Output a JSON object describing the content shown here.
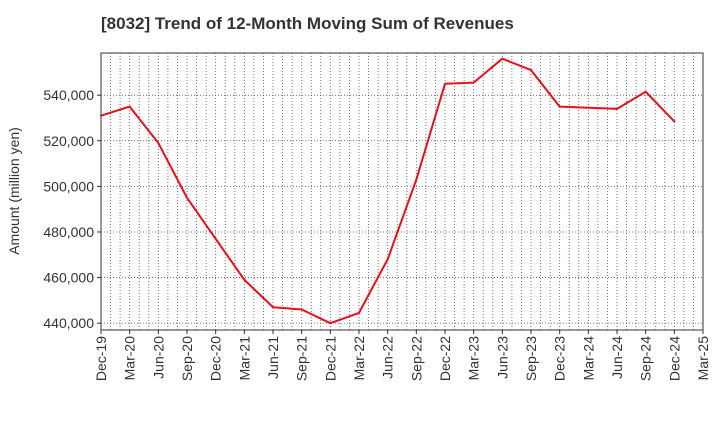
{
  "chart_data": {
    "type": "line",
    "title": "[8032]  Trend of 12-Month Moving Sum of Revenues",
    "xlabel": "",
    "ylabel": "Amount (million yen)",
    "grid": true,
    "legend": "none",
    "ylim": [
      437000,
      558500
    ],
    "y_ticks": [
      440000,
      460000,
      480000,
      500000,
      520000,
      540000
    ],
    "y_tick_labels": [
      "440,000",
      "460,000",
      "480,000",
      "500,000",
      "520,000",
      "540,000"
    ],
    "x_tick_labels": [
      "Dec-19",
      "Mar-20",
      "Jun-20",
      "Sep-20",
      "Dec-20",
      "Mar-21",
      "Jun-21",
      "Sep-21",
      "Dec-21",
      "Mar-22",
      "Jun-22",
      "Sep-22",
      "Dec-22",
      "Mar-23",
      "Jun-23",
      "Sep-23",
      "Dec-23",
      "Mar-24",
      "Jun-24",
      "Sep-24",
      "Dec-24",
      "Mar-25"
    ],
    "series": [
      {
        "color": "#e8101c",
        "x": [
          "Dec-19",
          "Mar-20",
          "Jun-20",
          "Sep-20",
          "Dec-20",
          "Mar-21",
          "Jun-21",
          "Sep-21",
          "Dec-21",
          "Mar-22",
          "Jun-22",
          "Sep-22",
          "Dec-22",
          "Mar-23",
          "Jun-23",
          "Sep-23",
          "Dec-23",
          "Mar-24",
          "Jun-24",
          "Sep-24",
          "Dec-24"
        ],
        "values": [
          531000,
          535000,
          519000,
          495000,
          477000,
          459000,
          447000,
          446000,
          440000,
          444500,
          468000,
          503000,
          545000,
          545500,
          556000,
          551000,
          535000,
          534500,
          534000,
          541500,
          528500
        ]
      }
    ]
  }
}
